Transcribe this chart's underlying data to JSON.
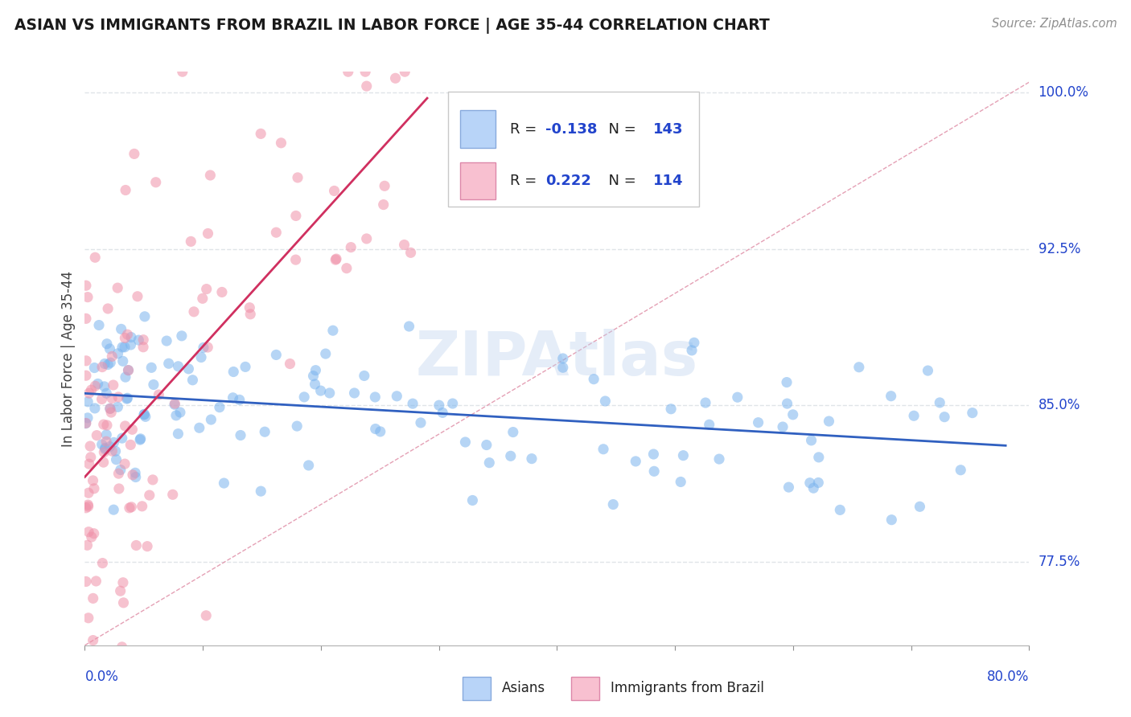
{
  "title": "ASIAN VS IMMIGRANTS FROM BRAZIL IN LABOR FORCE | AGE 35-44 CORRELATION CHART",
  "source": "Source: ZipAtlas.com",
  "xlim": [
    0.0,
    0.8
  ],
  "ylim": [
    0.735,
    1.01
  ],
  "ytick_values": [
    0.775,
    0.85,
    0.925,
    1.0
  ],
  "ytick_labels": [
    "77.5%",
    "85.0%",
    "92.5%",
    "100.0%"
  ],
  "xtick_left_label": "0.0%",
  "xtick_right_label": "80.0%",
  "asian_color": "#7ab4ee",
  "brazil_color": "#f090a8",
  "asian_trend_color": "#3060c0",
  "brazil_trend_color": "#d03060",
  "diagonal_color": "#e090a8",
  "legend_asian_fill": "#b8d4f8",
  "legend_brazil_fill": "#f8c0d0",
  "legend_asian_edge": "#88aadd",
  "legend_brazil_edge": "#dd88aa",
  "r_color": "#2244cc",
  "n_color": "#2244cc",
  "r1": "-0.138",
  "n1": "143",
  "r2": "0.222",
  "n2": "114",
  "label_asian": "Asians",
  "label_brazil": "Immigrants from Brazil",
  "ylabel_text": "In Labor Force | Age 35-44",
  "watermark": "ZIPAtlas",
  "background": "#ffffff",
  "grid_color": "#e0e4e8"
}
